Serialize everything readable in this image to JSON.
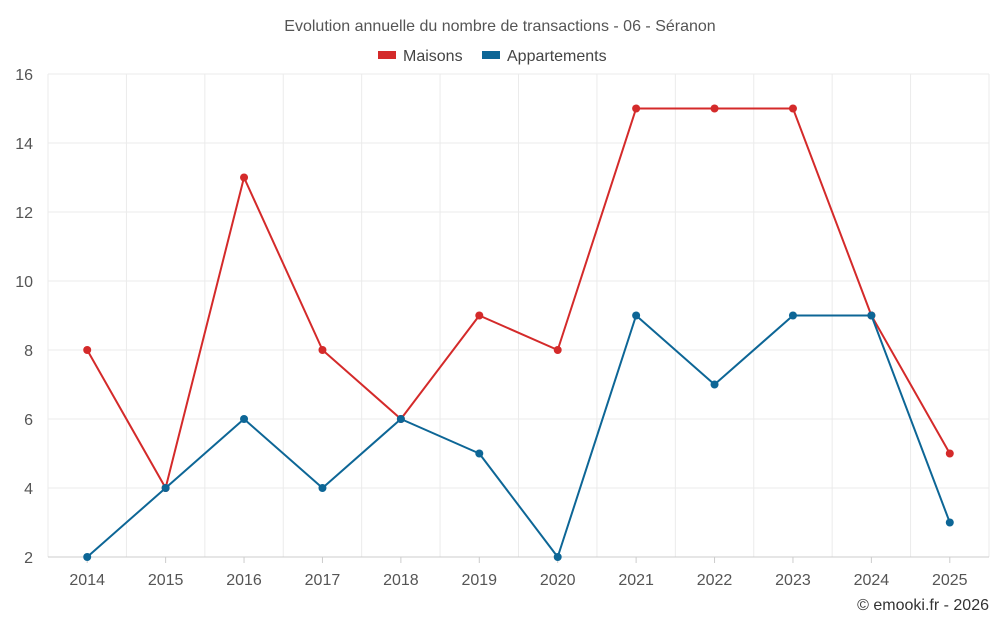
{
  "chart_data": {
    "type": "line",
    "title": "Evolution annuelle du nombre de transactions - 06 - Séranon",
    "categories": [
      "2014",
      "2015",
      "2016",
      "2017",
      "2018",
      "2019",
      "2020",
      "2021",
      "2022",
      "2023",
      "2024",
      "2025"
    ],
    "series": [
      {
        "name": "Maisons",
        "color": "#d42a2a",
        "values": [
          8,
          4,
          13,
          8,
          6,
          9,
          8,
          15,
          15,
          15,
          9,
          5
        ]
      },
      {
        "name": "Appartements",
        "color": "#0d6696",
        "values": [
          2,
          4,
          6,
          4,
          6,
          5,
          2,
          9,
          7,
          9,
          9,
          3
        ]
      }
    ],
    "ylim": [
      2,
      16
    ],
    "yticks": [
      "2",
      "4",
      "6",
      "8",
      "10",
      "12",
      "14",
      "16"
    ],
    "xlabel": "",
    "ylabel": "",
    "grid": true,
    "legend_position": "top-center"
  },
  "credit": "© emooki.fr - 2026"
}
